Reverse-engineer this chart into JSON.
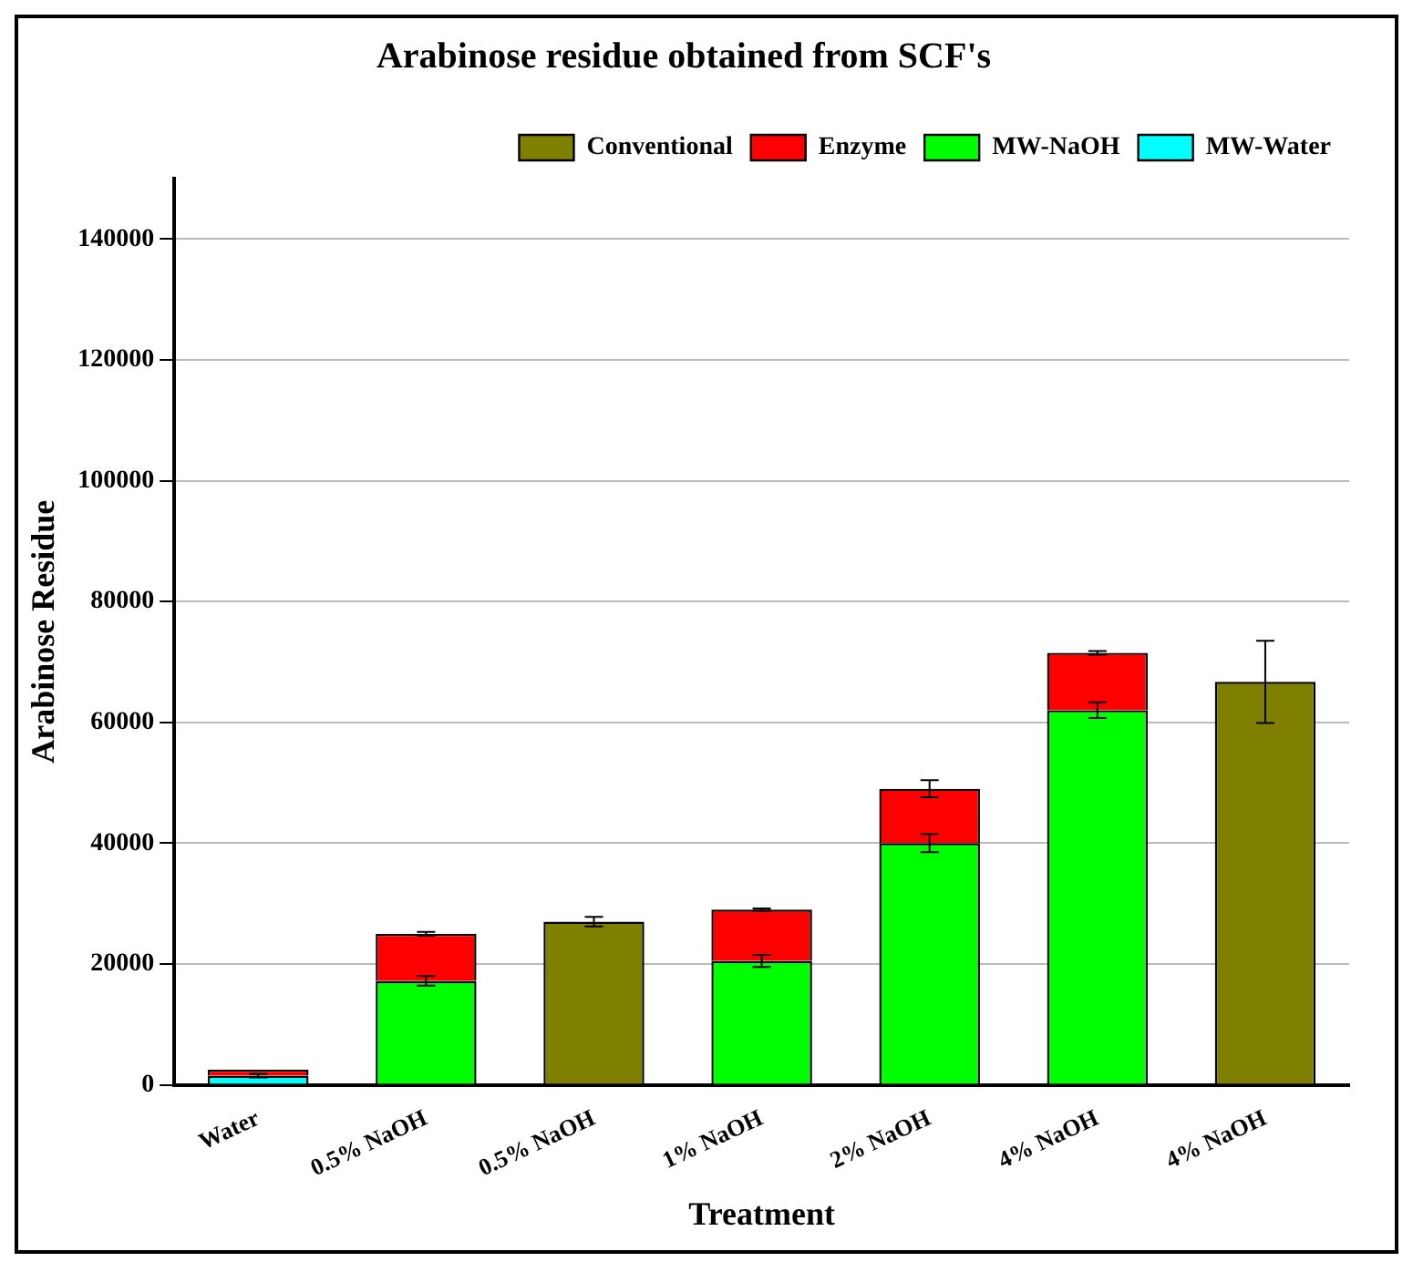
{
  "chart_data": {
    "type": "bar",
    "title": "Arabinose residue obtained from SCF's",
    "xlabel": "Treatment",
    "ylabel": "Arabinose Residue",
    "categories": [
      "Water",
      "0.5% NaOH",
      "0.5% NaOH",
      "1% NaOH",
      "2% NaOH",
      "4% NaOH",
      "4% NaOH"
    ],
    "stacked": true,
    "ylim": [
      0,
      150000
    ],
    "yticks": [
      0,
      20000,
      40000,
      60000,
      80000,
      100000,
      120000,
      140000
    ],
    "grid": "y",
    "legend": "top right",
    "series": [
      {
        "name": "MW-Water",
        "color": "#00ffff",
        "values": [
          1500,
          null,
          null,
          null,
          null,
          null,
          null
        ],
        "errors": [
          300,
          null,
          null,
          null,
          null,
          null,
          null
        ]
      },
      {
        "name": "MW-NaOH",
        "color": "#00ff00",
        "values": [
          null,
          17200,
          null,
          20500,
          40000,
          62000,
          null
        ],
        "errors": [
          null,
          800,
          null,
          1000,
          1500,
          1300,
          null
        ]
      },
      {
        "name": "Enzyme",
        "color": "#ff0000",
        "values": [
          1000,
          7800,
          null,
          8500,
          9000,
          9500,
          null
        ],
        "errors": [
          null,
          300,
          null,
          200,
          1400,
          300,
          null
        ]
      },
      {
        "name": "Conventional",
        "color": "#808000",
        "values": [
          null,
          null,
          27000,
          null,
          null,
          null,
          66700
        ],
        "errors": [
          null,
          null,
          800,
          null,
          null,
          null,
          6800
        ]
      }
    ]
  }
}
